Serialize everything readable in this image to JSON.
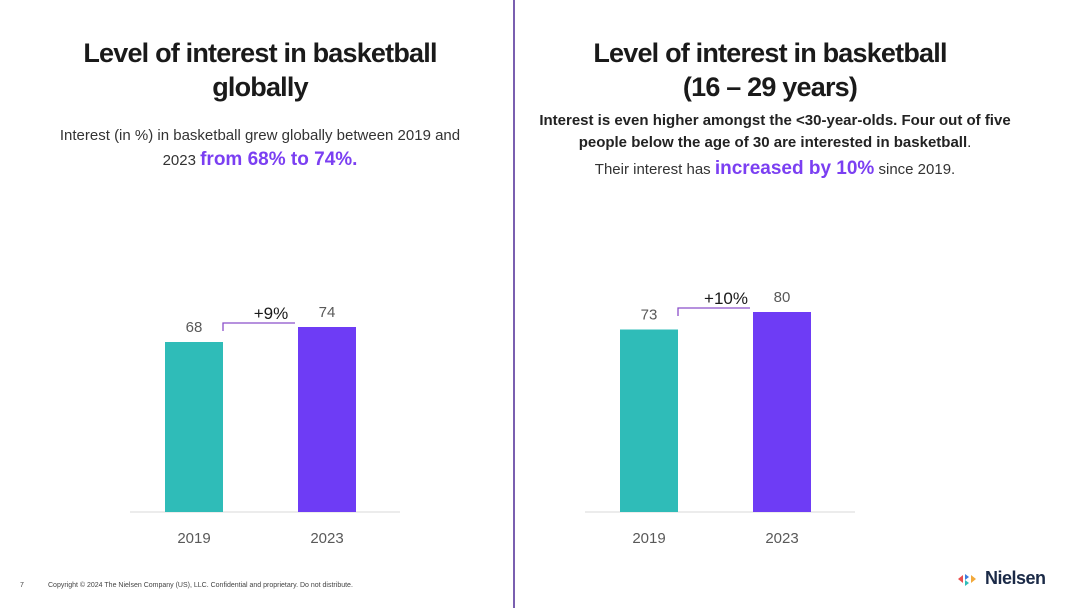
{
  "left_panel": {
    "title_line1": "Level of interest in basketball",
    "title_line2": "globally",
    "desc_pre": "Interest (in %) in basketball grew globally between 2019 and 2023 ",
    "desc_accent": "from 68% to 74%."
  },
  "right_panel": {
    "title_line1": "Level of interest in basketball",
    "title_line2": "(16 – 29 years)",
    "desc_bold": "Interest is even higher amongst the <30-year-olds. Four out of five people below the age of 30 are interested in basketball",
    "desc_bold_end": ".",
    "desc_pre": "Their interest has ",
    "desc_accent": "increased by 10%",
    "desc_post": " since 2019."
  },
  "footer": {
    "page_number": "7",
    "copyright": "Copyright © 2024 The Nielsen Company (US), LLC. Confidential and proprietary. Do not distribute.",
    "logo_text": "Nielsen"
  },
  "colors": {
    "bar_2019": "#2fbcb8",
    "bar_2023": "#6e3cf5",
    "accent": "#7b3ff2",
    "connector": "#8b4fc9"
  },
  "chart_data": [
    {
      "type": "bar",
      "categories": [
        "2019",
        "2023"
      ],
      "values": [
        68,
        74
      ],
      "change_label": "+9%",
      "ylim": [
        0,
        100
      ]
    },
    {
      "type": "bar",
      "categories": [
        "2019",
        "2023"
      ],
      "values": [
        73,
        80
      ],
      "change_label": "+10%",
      "ylim": [
        0,
        100
      ]
    }
  ]
}
